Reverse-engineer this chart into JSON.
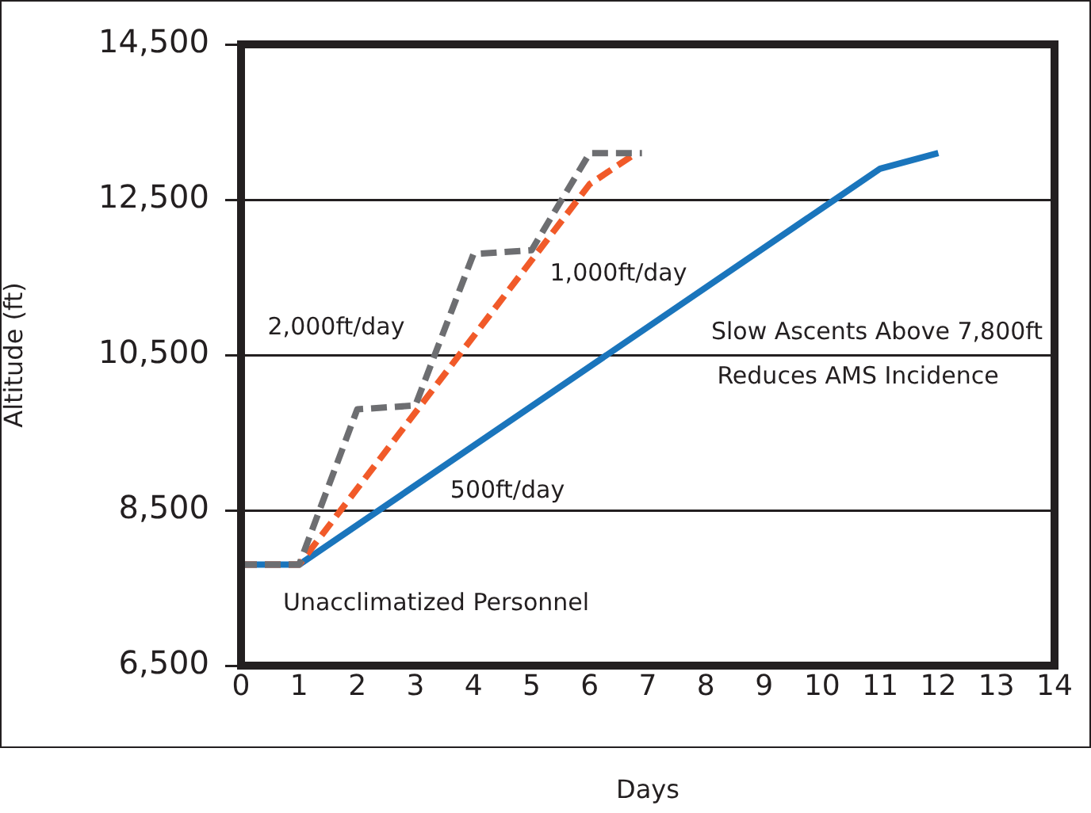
{
  "chart_data": {
    "type": "line",
    "xlabel": "Days",
    "ylabel": "Altitude (ft)",
    "xlim": [
      0,
      14
    ],
    "xticks": [
      0,
      1,
      2,
      3,
      4,
      5,
      6,
      7,
      8,
      9,
      10,
      11,
      12,
      13,
      14
    ],
    "ylim": [
      6500,
      14500
    ],
    "yticks": [
      {
        "value": 6500,
        "label": "6,500"
      },
      {
        "value": 8500,
        "label": "8,500"
      },
      {
        "value": 10500,
        "label": "10,500"
      },
      {
        "value": 12500,
        "label": "12,500"
      },
      {
        "value": 14500,
        "label": "14,500"
      }
    ],
    "grid": "y",
    "legend": false,
    "marker": "none",
    "series": [
      {
        "color": "#6d6e71",
        "line_style": "dashed",
        "x": [
          0,
          1,
          2,
          3,
          4,
          5,
          6,
          6.9
        ],
        "values": [
          7800,
          7800,
          9800,
          9850,
          11800,
          11850,
          13100,
          13100
        ]
      },
      {
        "color": "#f15a29",
        "line_style": "dashed",
        "x": [
          0,
          1,
          6,
          6.8
        ],
        "values": [
          7800,
          7800,
          12700,
          13100
        ]
      },
      {
        "color": "#1a75bc",
        "line_style": "solid",
        "x": [
          0,
          1,
          11,
          12
        ],
        "values": [
          7800,
          7800,
          12900,
          13100
        ]
      }
    ],
    "annotations": [
      "2,000ft/day",
      "1,000ft/day",
      "500ft/day",
      "Slow Ascents Above 7,800ft",
      "Reduces AMS Incidence",
      "Unacclimatized Personnel"
    ]
  }
}
